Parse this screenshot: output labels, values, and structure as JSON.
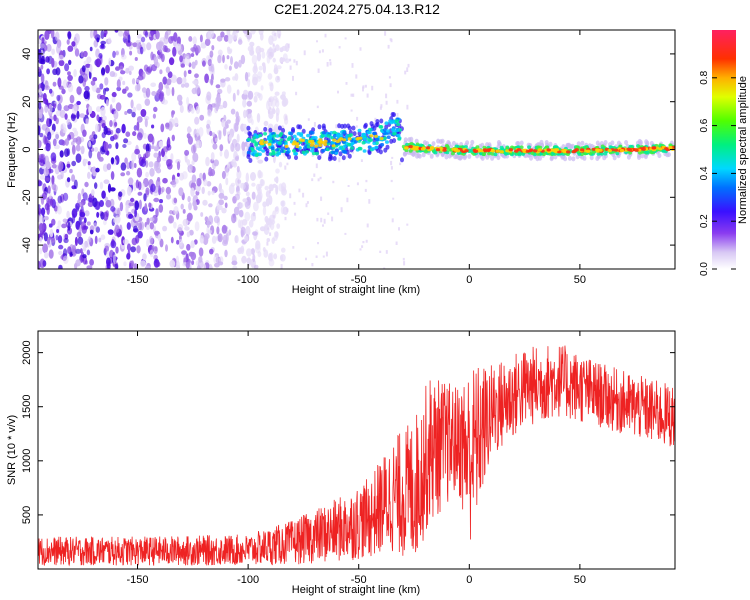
{
  "title": "C2E1.2024.275.04.13.R12",
  "chart_data": [
    {
      "type": "heatmap",
      "xlabel": "Height of straight line (km)",
      "ylabel": "Frequency (Hz)",
      "xlim": [
        -195,
        93
      ],
      "ylim": [
        -50,
        50
      ],
      "xticks": [
        -150,
        -100,
        -50,
        0,
        50
      ],
      "yticks": [
        -40,
        -20,
        0,
        20,
        40
      ],
      "colorbar": {
        "label": "Normalized spectral amplitude",
        "range": [
          0,
          1
        ],
        "ticks": [
          0.0,
          0.2,
          0.4,
          0.6,
          0.8
        ],
        "tick_labels": [
          "0.0",
          "0.2",
          "0.4",
          "0.6",
          "0.8"
        ]
      },
      "features": {
        "scatter_region_x": [
          -195,
          -92
        ],
        "scatter_region_y": [
          -50,
          50
        ],
        "signal_band": [
          {
            "x": -100,
            "y": 2
          },
          {
            "x": -80,
            "y": 2.5
          },
          {
            "x": -60,
            "y": 3
          },
          {
            "x": -45,
            "y": 4
          },
          {
            "x": -32,
            "y": 9
          },
          {
            "x": -30,
            "y": 1
          },
          {
            "x": 0,
            "y": -0.5
          },
          {
            "x": 50,
            "y": -0.5
          },
          {
            "x": 93,
            "y": 0.5
          }
        ]
      },
      "grid": false
    },
    {
      "type": "line",
      "xlabel": "Height of straight line (km)",
      "ylabel": "SNR (10 * v/v)",
      "xlim": [
        -195,
        93
      ],
      "ylim": [
        0,
        2200
      ],
      "xticks": [
        -150,
        -100,
        -50,
        0,
        50
      ],
      "yticks": [
        500,
        1000,
        1500,
        2000
      ],
      "color": "#ee2222",
      "envelope": [
        {
          "x": -195,
          "low": 30,
          "high": 300
        },
        {
          "x": -150,
          "low": 30,
          "high": 300
        },
        {
          "x": -100,
          "low": 30,
          "high": 320
        },
        {
          "x": -80,
          "low": 40,
          "high": 450
        },
        {
          "x": -60,
          "low": 60,
          "high": 650
        },
        {
          "x": -45,
          "low": 100,
          "high": 850
        },
        {
          "x": -35,
          "low": 150,
          "high": 1200
        },
        {
          "x": -25,
          "low": 50,
          "high": 1400
        },
        {
          "x": -18,
          "low": 400,
          "high": 1800
        },
        {
          "x": -5,
          "low": 700,
          "high": 1700
        },
        {
          "x": 0,
          "low": 200,
          "high": 1900
        },
        {
          "x": 10,
          "low": 1000,
          "high": 1900
        },
        {
          "x": 25,
          "low": 1300,
          "high": 2050
        },
        {
          "x": 40,
          "low": 1400,
          "high": 2100
        },
        {
          "x": 60,
          "low": 1300,
          "high": 1900
        },
        {
          "x": 75,
          "low": 1200,
          "high": 1800
        },
        {
          "x": 93,
          "low": 1100,
          "high": 1700
        }
      ],
      "grid": false
    }
  ]
}
